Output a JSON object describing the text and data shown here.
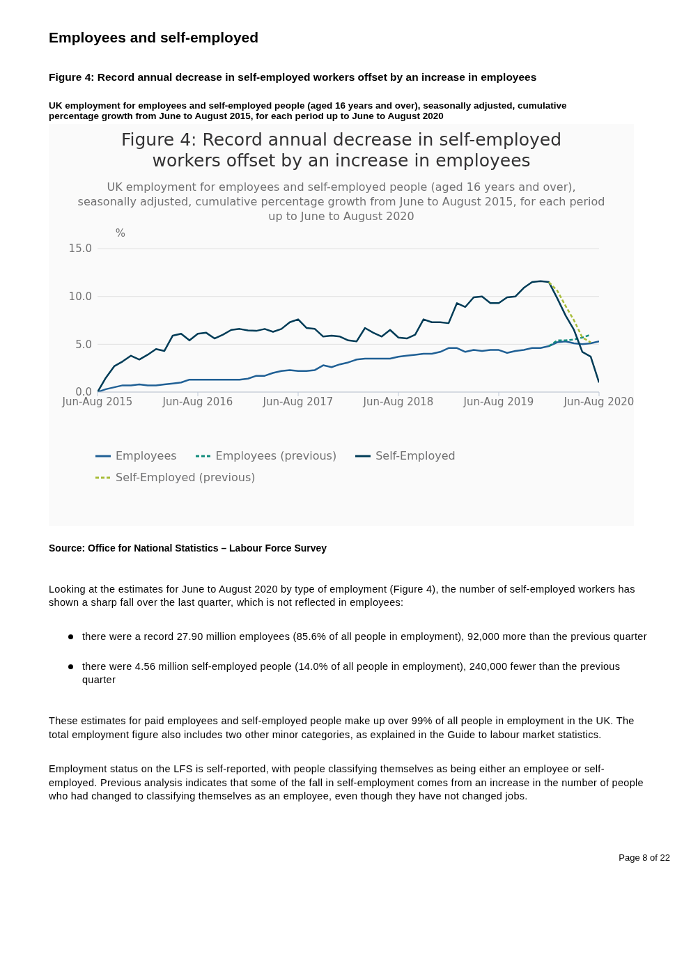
{
  "chart_data": {
    "type": "line",
    "title": "Figure 4: Record annual decrease in self-employed workers offset by an increase in employees",
    "subtitle": "UK employment for employees and self-employed people (aged 16 years and over), seasonally adjusted, cumulative percentage growth from June to August 2015, for each period up to June to August 2020",
    "ylabel": "%",
    "categories": [
      "Jun-Aug 2015",
      null,
      null,
      null,
      null,
      null,
      null,
      null,
      null,
      null,
      null,
      null,
      "Jun-Aug 2016",
      null,
      null,
      null,
      null,
      null,
      null,
      null,
      null,
      null,
      null,
      null,
      "Jun-Aug 2017",
      null,
      null,
      null,
      null,
      null,
      null,
      null,
      null,
      null,
      null,
      null,
      "Jun-Aug 2018",
      null,
      null,
      null,
      null,
      null,
      null,
      null,
      null,
      null,
      null,
      null,
      "Jun-Aug 2019",
      null,
      null,
      null,
      null,
      null,
      null,
      null,
      null,
      null,
      null,
      null,
      "Jun-Aug 2020"
    ],
    "series": [
      {
        "name": "Employees",
        "color": "#206095",
        "line_style": "solid",
        "values": [
          0,
          0.3,
          0.5,
          0.7,
          0.7,
          0.8,
          0.7,
          0.7,
          0.8,
          0.9,
          1.0,
          1.3,
          1.3,
          1.3,
          1.3,
          1.3,
          1.3,
          1.3,
          1.4,
          1.7,
          1.7,
          2.0,
          2.2,
          2.3,
          2.2,
          2.2,
          2.3,
          2.8,
          2.6,
          2.9,
          3.1,
          3.4,
          3.5,
          3.5,
          3.5,
          3.5,
          3.7,
          3.8,
          3.9,
          4.0,
          4.0,
          4.2,
          4.6,
          4.6,
          4.2,
          4.4,
          4.3,
          4.4,
          4.4,
          4.1,
          4.3,
          4.4,
          4.6,
          4.6,
          4.8,
          5.2,
          5.3,
          5.1,
          5.0,
          5.1,
          5.3
        ]
      },
      {
        "name": "Employees (previous)",
        "color": "#118c7b",
        "line_style": "dashed",
        "values": [
          null,
          null,
          null,
          null,
          null,
          null,
          null,
          null,
          null,
          null,
          null,
          null,
          null,
          null,
          null,
          null,
          null,
          null,
          null,
          null,
          null,
          null,
          null,
          null,
          null,
          null,
          null,
          null,
          null,
          null,
          null,
          null,
          null,
          null,
          null,
          null,
          null,
          null,
          null,
          null,
          null,
          null,
          null,
          null,
          null,
          null,
          null,
          null,
          null,
          null,
          null,
          null,
          null,
          null,
          4.8,
          5.4,
          5.4,
          5.5,
          5.7,
          6.0,
          null
        ]
      },
      {
        "name": "Self-Employed",
        "color": "#003c57",
        "line_style": "solid",
        "values": [
          0,
          1.5,
          2.7,
          3.2,
          3.8,
          3.4,
          3.9,
          4.5,
          4.3,
          5.9,
          6.1,
          5.4,
          6.1,
          6.2,
          5.6,
          6.0,
          6.5,
          6.6,
          6.45,
          6.4,
          6.6,
          6.3,
          6.6,
          7.3,
          7.6,
          6.7,
          6.6,
          5.8,
          5.9,
          5.8,
          5.4,
          5.3,
          6.7,
          6.2,
          5.8,
          6.5,
          5.7,
          5.6,
          6.0,
          7.6,
          7.3,
          7.3,
          7.2,
          9.3,
          8.9,
          9.9,
          10.0,
          9.3,
          9.3,
          9.9,
          10.0,
          10.9,
          11.5,
          11.6,
          11.5,
          9.8,
          8.0,
          6.5,
          4.2,
          3.7,
          1.0
        ]
      },
      {
        "name": "Self-Employed (previous)",
        "color": "#a8bd3a",
        "line_style": "dashed",
        "values": [
          null,
          null,
          null,
          null,
          null,
          null,
          null,
          null,
          null,
          null,
          null,
          null,
          null,
          null,
          null,
          null,
          null,
          null,
          null,
          null,
          null,
          null,
          null,
          null,
          null,
          null,
          null,
          null,
          null,
          null,
          null,
          null,
          null,
          null,
          null,
          null,
          null,
          null,
          null,
          null,
          null,
          null,
          null,
          null,
          null,
          null,
          null,
          null,
          null,
          null,
          null,
          null,
          null,
          null,
          11.5,
          10.6,
          9.0,
          7.5,
          5.7,
          5.2,
          null
        ]
      }
    ],
    "ylim": [
      0,
      15
    ],
    "yticks": [
      {
        "value": 0,
        "label": "0.0"
      },
      {
        "value": 5,
        "label": "5.0"
      },
      {
        "value": 10,
        "label": "10.0"
      },
      {
        "value": 15,
        "label": "15.0"
      }
    ],
    "grid": "y",
    "legend": "bottom",
    "marker": "none",
    "annotations": [
      "Employees and self-employed",
      "Source: Office for National Statistics – Labour Force Survey",
      "Looking at the estimates for June to August 2020 by type of employment (Figure 4), the number of self-employed workers has shown a sharp fall over the last quarter, which is not reflected in employees:",
      "there were a record 27.90 million employees (85.6% of all people in employment), 92,000 more than the previous quarter",
      "there were 4.56 million self-employed people (14.0% of all people in employment), 240,000 fewer than the previous quarter",
      "These estimates for paid employees and self-employed people make up over 99% of all people in employment in the UK. The total employment figure also includes two other minor categories, as explained in the Guide to labour market statistics.",
      "Employment status on the LFS is self-reported, with people classifying themselves as being either an employee or self-employed. Previous analysis indicates that some of the fall in self-employment comes from an increase in the number of people who had changed to classifying themselves as an employee, even though they have not changed jobs.",
      "Page 8 of 22"
    ]
  }
}
